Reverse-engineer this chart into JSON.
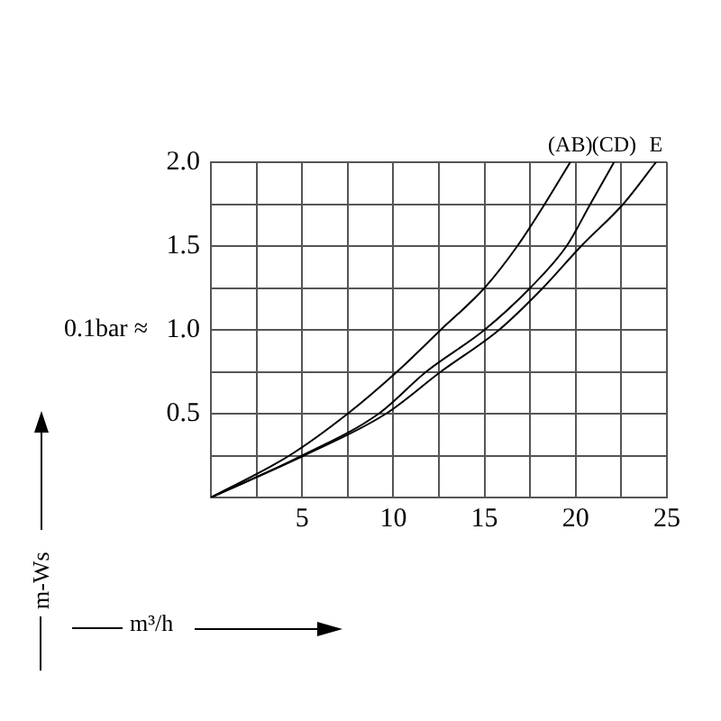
{
  "chart_data": {
    "type": "line",
    "xlabel": "m³/h",
    "ylabel": "m-Ws",
    "annotations": [
      "0.1bar ≈"
    ],
    "xlim": [
      0,
      25
    ],
    "ylim": [
      0,
      2
    ],
    "xticks": [
      {
        "value": 0,
        "label": null
      },
      {
        "value": 2.5,
        "label": null
      },
      5,
      {
        "value": 7.5,
        "label": null
      },
      10,
      {
        "value": 12.5,
        "label": null
      },
      15,
      {
        "value": 17.5,
        "label": null
      },
      20,
      {
        "value": 22.5,
        "label": null
      },
      25
    ],
    "yticks": [
      {
        "value": 0,
        "label": null
      },
      {
        "value": 0.25,
        "label": null
      },
      0.5,
      {
        "value": 0.75,
        "label": null
      },
      {
        "value": 1,
        "label": "1.0"
      },
      {
        "value": 1.25,
        "label": null
      },
      1.5,
      {
        "value": 1.75,
        "label": null
      },
      {
        "value": 2,
        "label": "2.0"
      }
    ],
    "grid": true,
    "legend": false,
    "marker": "none",
    "line_style": "solid",
    "series": [
      {
        "name": "(AB)",
        "color": "#000000",
        "x": [
          0,
          4.3,
          7.5,
          10.2,
          12.6,
          15,
          16.8,
          18.3,
          19.7
        ],
        "values": [
          0,
          0.25,
          0.5,
          0.75,
          1,
          1.25,
          1.5,
          1.75,
          2
        ]
      },
      {
        "name": "(CD)",
        "color": "#000000",
        "x": [
          0,
          5,
          9.2,
          11.8,
          15,
          17.5,
          19.5,
          20.8,
          22.1
        ],
        "values": [
          0,
          0.25,
          0.5,
          0.75,
          1,
          1.25,
          1.5,
          1.75,
          2
        ]
      },
      {
        "name": "E",
        "color": "#000000",
        "x": [
          0,
          5.1,
          9.6,
          12.6,
          15.8,
          18.2,
          20.3,
          22.6,
          24.4
        ],
        "values": [
          0,
          0.25,
          0.5,
          0.75,
          1,
          1.25,
          1.5,
          1.75,
          2
        ]
      }
    ]
  }
}
